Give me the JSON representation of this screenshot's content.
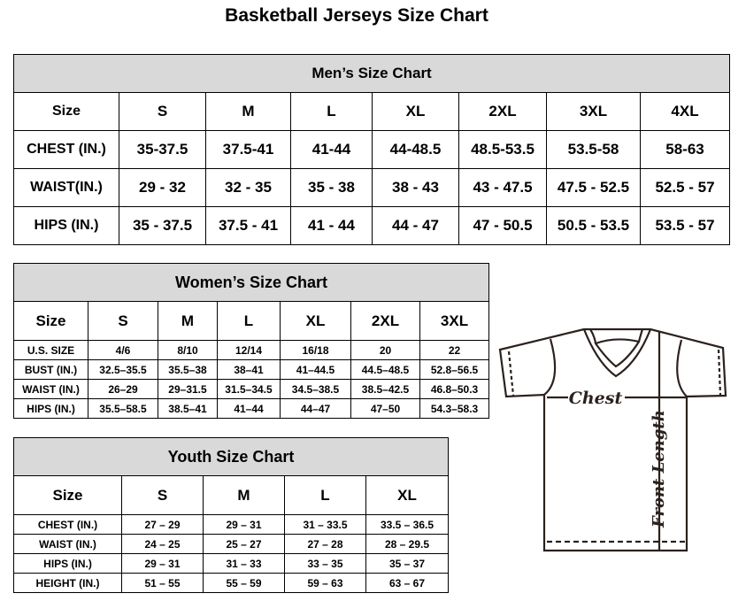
{
  "title": "Basketball Jerseys Size Chart",
  "men": {
    "title": "Men’s Size Chart",
    "header": [
      "Size",
      "S",
      "M",
      "L",
      "XL",
      "2XL",
      "3XL",
      "4XL"
    ],
    "rows": [
      [
        "CHEST (IN.)",
        "35-37.5",
        "37.5-41",
        "41-44",
        "44-48.5",
        "48.5-53.5",
        "53.5-58",
        "58-63"
      ],
      [
        "WAIST(IN.)",
        "29 - 32",
        "32 - 35",
        "35 - 38",
        "38 - 43",
        "43 - 47.5",
        "47.5 - 52.5",
        "52.5 - 57"
      ],
      [
        "HIPS (IN.)",
        "35 - 37.5",
        "37.5 - 41",
        "41 - 44",
        "44 - 47",
        "47 - 50.5",
        "50.5 - 53.5",
        "53.5 - 57"
      ]
    ]
  },
  "women": {
    "title": "Women’s Size Chart",
    "header": [
      "Size",
      "S",
      "M",
      "L",
      "XL",
      "2XL",
      "3XL"
    ],
    "rows": [
      [
        "U.S. SIZE",
        "4/6",
        "8/10",
        "12/14",
        "16/18",
        "20",
        "22"
      ],
      [
        "BUST (IN.)",
        "32.5–35.5",
        "35.5–38",
        "38–41",
        "41–44.5",
        "44.5–48.5",
        "52.8–56.5"
      ],
      [
        "WAIST (IN.)",
        "26–29",
        "29–31.5",
        "31.5–34.5",
        "34.5–38.5",
        "38.5–42.5",
        "46.8–50.3"
      ],
      [
        "HIPS (IN.)",
        "35.5–58.5",
        "38.5–41",
        "41–44",
        "44–47",
        "47–50",
        "54.3–58.3"
      ]
    ]
  },
  "youth": {
    "title": "Youth Size Chart",
    "header": [
      "Size",
      "S",
      "M",
      "L",
      "XL"
    ],
    "rows": [
      [
        "CHEST (IN.)",
        "27 – 29",
        "29 – 31",
        "31 – 33.5",
        "33.5 – 36.5"
      ],
      [
        "WAIST (IN.)",
        "24 – 25",
        "25 – 27",
        "27 – 28",
        "28 – 29.5"
      ],
      [
        "HIPS (IN.)",
        "29 – 31",
        "31 – 33",
        "33 – 35",
        "35 – 37"
      ],
      [
        "HEIGHT (IN.)",
        "51 – 55",
        "55 – 59",
        "59 – 63",
        "63 – 67"
      ]
    ]
  },
  "diagram": {
    "chest_label": "Chest",
    "length_label": "Front Length",
    "line_color": "#2b211d"
  }
}
